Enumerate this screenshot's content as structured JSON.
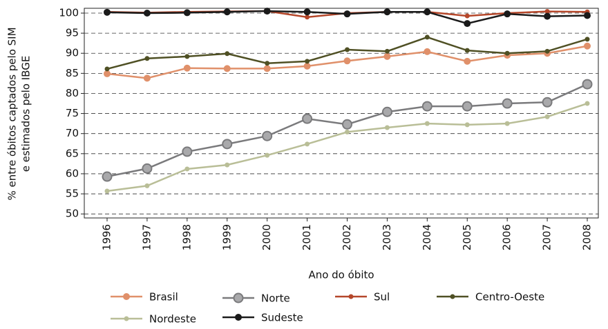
{
  "chart_data": {
    "type": "line",
    "ylabel": [
      "% entre óbitos captados pelo SIM",
      "e estimados pelo IBGE"
    ],
    "xlabel": "Ano do óbito",
    "categories": [
      "1996",
      "1997",
      "1998",
      "1999",
      "2000",
      "2001",
      "2002",
      "2003",
      "2004",
      "2005",
      "2006",
      "2007",
      "2008"
    ],
    "ylim": [
      49,
      101.2
    ],
    "yticks": [
      50,
      55,
      60,
      65,
      70,
      75,
      80,
      85,
      90,
      95,
      100
    ],
    "grid": true,
    "series": [
      {
        "name": "Brasil",
        "color": "#e0906a",
        "values": [
          84.9,
          83.8,
          86.3,
          86.2,
          86.2,
          86.8,
          88.1,
          89.2,
          90.4,
          88.0,
          89.5,
          90.0,
          91.8
        ]
      },
      {
        "name": "Norte",
        "color": "#7a7a7c",
        "values": [
          59.3,
          61.3,
          65.5,
          67.4,
          69.4,
          73.7,
          72.3,
          75.4,
          76.8,
          76.8,
          77.5,
          77.8,
          82.3
        ]
      },
      {
        "name": "Sul",
        "color": "#b5472a",
        "values": [
          100.3,
          100.1,
          100.3,
          100.4,
          100.5,
          99.0,
          100.0,
          100.3,
          100.3,
          99.3,
          100.0,
          100.4,
          100.3
        ]
      },
      {
        "name": "Centro-Oeste",
        "color": "#4f5024",
        "values": [
          86.1,
          88.7,
          89.2,
          89.9,
          87.5,
          88.0,
          90.9,
          90.5,
          94.0,
          90.7,
          90.0,
          90.5,
          93.5
        ]
      },
      {
        "name": "Nordeste",
        "color": "#b9be97",
        "values": [
          55.7,
          57.0,
          61.2,
          62.2,
          64.6,
          67.4,
          70.4,
          71.5,
          72.5,
          72.2,
          72.5,
          74.2,
          77.5
        ]
      },
      {
        "name": "Sudeste",
        "color": "#1a1a1a",
        "values": [
          100.2,
          100.0,
          100.1,
          100.3,
          100.5,
          100.3,
          99.8,
          100.3,
          100.3,
          97.4,
          99.8,
          99.2,
          99.4
        ]
      }
    ]
  }
}
